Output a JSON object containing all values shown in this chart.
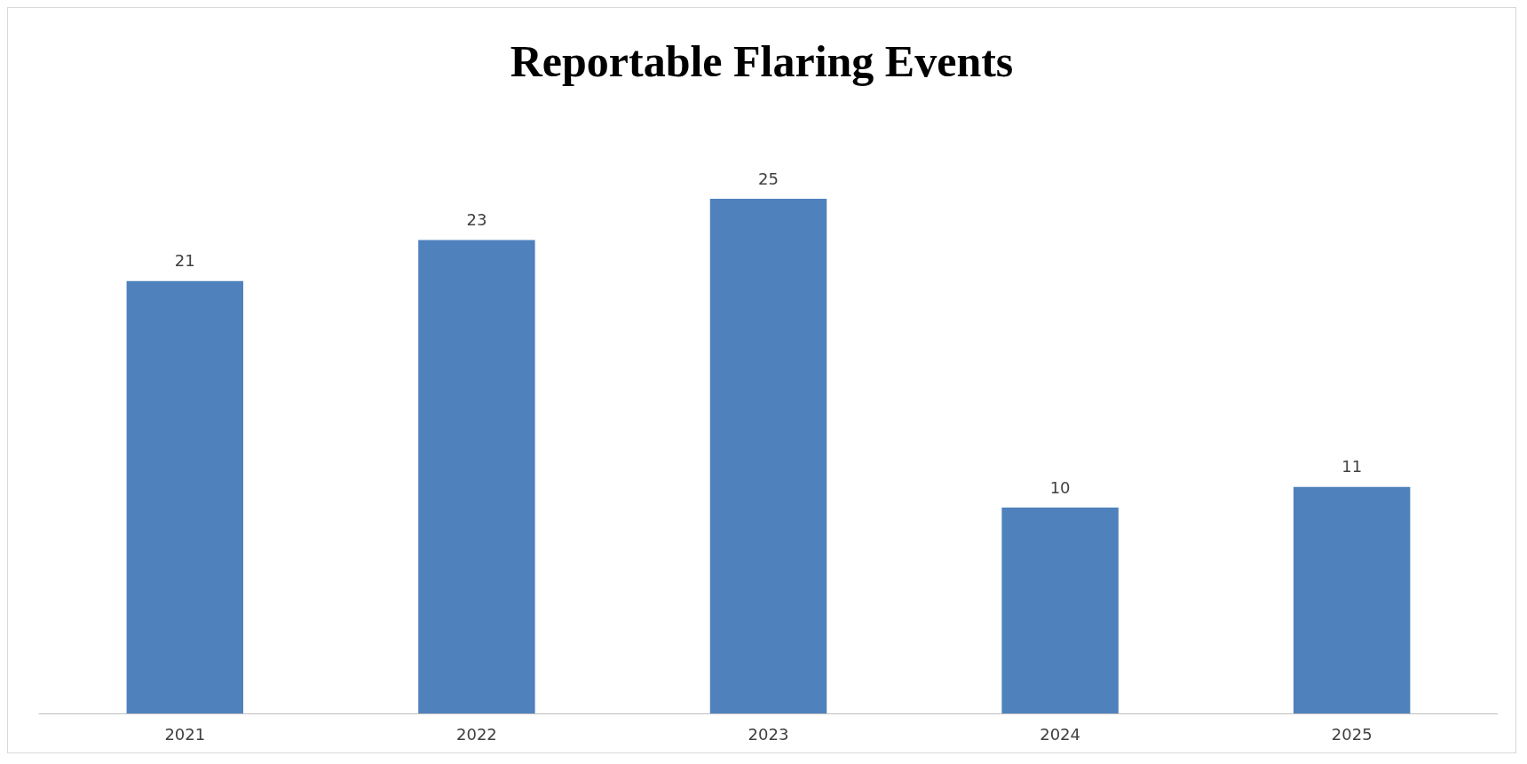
{
  "chart_data": {
    "type": "bar",
    "title": "Reportable Flaring Events",
    "categories": [
      "2021",
      "2022",
      "2023",
      "2024",
      "2025"
    ],
    "values": [
      21,
      23,
      25,
      10,
      11
    ],
    "color": "#4f81bd",
    "data_labels": true
  }
}
